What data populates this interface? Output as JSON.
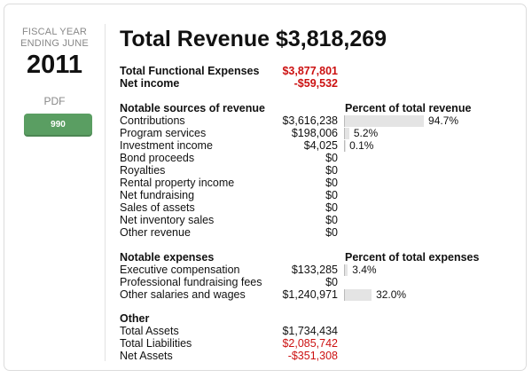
{
  "fiscal": {
    "label_line1": "FISCAL YEAR",
    "label_line2": "ENDING JUNE",
    "year": "2011"
  },
  "pdf": {
    "label": "PDF",
    "button": "990"
  },
  "title": "Total Revenue $3,818,269",
  "summary": [
    {
      "label": "Total Functional Expenses",
      "value": "$3,877,801"
    },
    {
      "label": "Net income",
      "value": "-$59,532"
    }
  ],
  "revenue": {
    "heading": "Notable sources of revenue",
    "pct_heading": "Percent of total revenue",
    "items": [
      {
        "label": "Contributions",
        "value": "$3,616,238",
        "pct": 94.7,
        "pct_label": "94.7%"
      },
      {
        "label": "Program services",
        "value": "$198,006",
        "pct": 5.2,
        "pct_label": "5.2%"
      },
      {
        "label": "Investment income",
        "value": "$4,025",
        "pct": 0.1,
        "pct_label": "0.1%"
      },
      {
        "label": "Bond proceeds",
        "value": "$0"
      },
      {
        "label": "Royalties",
        "value": "$0"
      },
      {
        "label": "Rental property income",
        "value": "$0"
      },
      {
        "label": "Net fundraising",
        "value": "$0"
      },
      {
        "label": "Sales of assets",
        "value": "$0"
      },
      {
        "label": "Net inventory sales",
        "value": "$0"
      },
      {
        "label": "Other revenue",
        "value": "$0"
      }
    ]
  },
  "expenses": {
    "heading": "Notable expenses",
    "pct_heading": "Percent of total expenses",
    "items": [
      {
        "label": "Executive compensation",
        "value": "$133,285",
        "pct": 3.4,
        "pct_label": "3.4%"
      },
      {
        "label": "Professional fundraising fees",
        "value": "$0"
      },
      {
        "label": "Other salaries and wages",
        "value": "$1,240,971",
        "pct": 32.0,
        "pct_label": "32.0%"
      }
    ]
  },
  "other": {
    "heading": "Other",
    "items": [
      {
        "label": "Total Assets",
        "value": "$1,734,434",
        "negative": false
      },
      {
        "label": "Total Liabilities",
        "value": "$2,085,742",
        "negative": true
      },
      {
        "label": "Net Assets",
        "value": "-$351,308",
        "negative": true
      }
    ]
  },
  "colors": {
    "accent_red": "#cc1111",
    "button_green": "#5a9e62",
    "bar": "#e4e4e4"
  }
}
